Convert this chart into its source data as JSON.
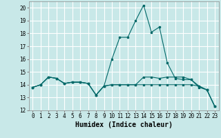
{
  "title": "",
  "xlabel": "Humidex (Indice chaleur)",
  "xlim": [
    -0.5,
    23.5
  ],
  "ylim": [
    12,
    20.5
  ],
  "yticks": [
    12,
    13,
    14,
    15,
    16,
    17,
    18,
    19,
    20
  ],
  "xticks": [
    0,
    1,
    2,
    3,
    4,
    5,
    6,
    7,
    8,
    9,
    10,
    11,
    12,
    13,
    14,
    15,
    16,
    17,
    18,
    19,
    20,
    21,
    22,
    23
  ],
  "bg_color": "#c8e8e8",
  "grid_color": "#ffffff",
  "line_color": "#006868",
  "lines": [
    [
      13.8,
      14.0,
      14.6,
      14.5,
      14.1,
      14.2,
      14.2,
      14.1,
      13.2,
      13.9,
      14.0,
      14.0,
      14.0,
      14.0,
      14.6,
      14.6,
      14.5,
      14.6,
      14.6,
      14.6,
      14.4,
      13.8,
      13.6,
      12.3
    ],
    [
      13.8,
      14.0,
      14.6,
      14.5,
      14.1,
      14.2,
      14.2,
      14.1,
      13.2,
      13.9,
      16.0,
      17.7,
      17.7,
      19.0,
      20.2,
      18.1,
      18.5,
      15.7,
      14.5,
      14.4,
      14.4,
      13.9,
      13.6,
      12.3
    ],
    [
      13.8,
      14.0,
      14.6,
      14.5,
      14.1,
      14.2,
      14.2,
      14.1,
      13.2,
      13.9,
      14.0,
      14.0,
      14.0,
      14.0,
      14.0,
      14.0,
      14.0,
      14.0,
      14.0,
      14.0,
      14.0,
      13.9,
      13.6,
      12.3
    ]
  ],
  "font_family": "monospace",
  "tick_fontsize": 5.5,
  "label_fontsize": 7.0
}
